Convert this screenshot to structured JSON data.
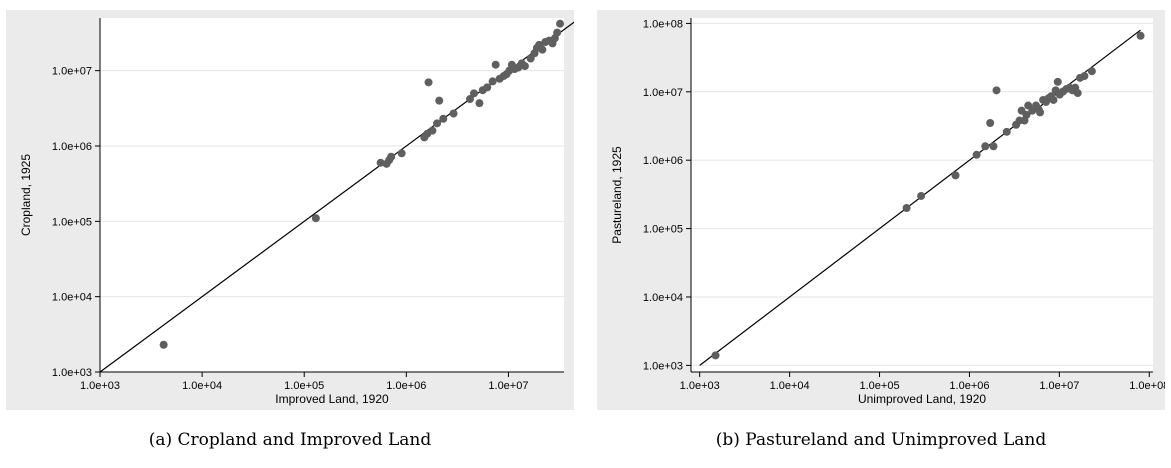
{
  "captions": {
    "a": "(a) Cropland and Improved Land",
    "b": "(b) Pastureland and Unimproved Land"
  },
  "colors": {
    "panel_bg": "#ebebeb",
    "plot_bg": "#ffffff",
    "marker": "#5f5f5f",
    "line": "#000000",
    "grid": "#e6e6e6"
  },
  "chart_data": [
    {
      "type": "scatter",
      "xlabel": "Improved Land, 1920",
      "ylabel": "Cropland, 1925",
      "x_scale": "log",
      "y_scale": "log",
      "xlim": [
        1000,
        35000000
      ],
      "ylim": [
        1000,
        50000000
      ],
      "x_ticks": [
        1000,
        10000,
        100000,
        1000000,
        10000000
      ],
      "x_tick_labels": [
        "1.0e+03",
        "1.0e+04",
        "1.0e+05",
        "1.0e+06",
        "1.0e+07"
      ],
      "y_ticks": [
        1000,
        10000,
        100000,
        1000000,
        10000000
      ],
      "y_tick_labels": [
        "1.0e+03",
        "1.0e+04",
        "1.0e+05",
        "1.0e+06",
        "1.0e+07"
      ],
      "grid": true,
      "line": {
        "from": [
          1000,
          1000
        ],
        "to": [
          50000000,
          50000000
        ]
      },
      "points": [
        [
          4200,
          2300
        ],
        [
          130000,
          110000
        ],
        [
          560000,
          600000
        ],
        [
          640000,
          580000
        ],
        [
          680000,
          650000
        ],
        [
          710000,
          720000
        ],
        [
          900000,
          800000
        ],
        [
          1500000,
          1300000
        ],
        [
          1600000,
          1450000
        ],
        [
          1650000,
          7000000
        ],
        [
          1800000,
          1600000
        ],
        [
          2000000,
          2000000
        ],
        [
          2100000,
          4000000
        ],
        [
          2300000,
          2300000
        ],
        [
          2900000,
          2700000
        ],
        [
          4200000,
          4200000
        ],
        [
          4600000,
          5000000
        ],
        [
          5200000,
          3700000
        ],
        [
          5600000,
          5500000
        ],
        [
          6200000,
          6000000
        ],
        [
          7000000,
          7200000
        ],
        [
          7500000,
          12000000
        ],
        [
          8200000,
          7800000
        ],
        [
          9000000,
          8500000
        ],
        [
          9600000,
          9000000
        ],
        [
          10200000,
          10000000
        ],
        [
          10800000,
          12000000
        ],
        [
          11500000,
          10500000
        ],
        [
          12500000,
          11000000
        ],
        [
          13500000,
          12500000
        ],
        [
          14500000,
          11500000
        ],
        [
          16500000,
          14500000
        ],
        [
          18000000,
          17000000
        ],
        [
          19000000,
          20000000
        ],
        [
          20000000,
          22000000
        ],
        [
          21500000,
          19000000
        ],
        [
          23000000,
          24000000
        ],
        [
          25000000,
          25000000
        ],
        [
          27000000,
          23000000
        ],
        [
          28500000,
          27000000
        ],
        [
          30000000,
          32000000
        ],
        [
          32000000,
          42000000
        ]
      ]
    },
    {
      "type": "scatter",
      "xlabel": "Unimproved Land, 1920",
      "ylabel": "Pastureland, 1925",
      "x_scale": "log",
      "y_scale": "log",
      "xlim": [
        800,
        110000000
      ],
      "ylim": [
        800,
        120000000
      ],
      "x_ticks": [
        1000,
        10000,
        100000,
        1000000,
        10000000,
        100000000
      ],
      "x_tick_labels": [
        "1.0e+03",
        "1.0e+04",
        "1.0e+05",
        "1.0e+06",
        "1.0e+07",
        "1.0e+08"
      ],
      "y_ticks": [
        1000,
        10000,
        100000,
        1000000,
        10000000,
        100000000
      ],
      "y_tick_labels": [
        "1.0e+03",
        "1.0e+04",
        "1.0e+05",
        "1.0e+06",
        "1.0e+07",
        "1.0e+08"
      ],
      "grid": true,
      "line": {
        "from": [
          1000,
          1000
        ],
        "to": [
          80000000,
          80000000
        ]
      },
      "points": [
        [
          1500,
          1400
        ],
        [
          200000,
          200000
        ],
        [
          290000,
          300000
        ],
        [
          700000,
          600000
        ],
        [
          1200000,
          1200000
        ],
        [
          1500000,
          1600000
        ],
        [
          1700000,
          3500000
        ],
        [
          1850000,
          1600000
        ],
        [
          2000000,
          10500000
        ],
        [
          2600000,
          2600000
        ],
        [
          3300000,
          3300000
        ],
        [
          3600000,
          3800000
        ],
        [
          3800000,
          5300000
        ],
        [
          4100000,
          3800000
        ],
        [
          4300000,
          4600000
        ],
        [
          4500000,
          6300000
        ],
        [
          5000000,
          5300000
        ],
        [
          5500000,
          6300000
        ],
        [
          5900000,
          5500000
        ],
        [
          6100000,
          5000000
        ],
        [
          6600000,
          7600000
        ],
        [
          7100000,
          7100000
        ],
        [
          7600000,
          8100000
        ],
        [
          8100000,
          8600000
        ],
        [
          8600000,
          7600000
        ],
        [
          9100000,
          10500000
        ],
        [
          9600000,
          14000000
        ],
        [
          10100000,
          9100000
        ],
        [
          11000000,
          10100000
        ],
        [
          12000000,
          11000000
        ],
        [
          13000000,
          11500000
        ],
        [
          14000000,
          10500000
        ],
        [
          15000000,
          11500000
        ],
        [
          16000000,
          9600000
        ],
        [
          17000000,
          16000000
        ],
        [
          19000000,
          17000000
        ],
        [
          23000000,
          20000000
        ],
        [
          80000000,
          66000000
        ]
      ]
    }
  ]
}
